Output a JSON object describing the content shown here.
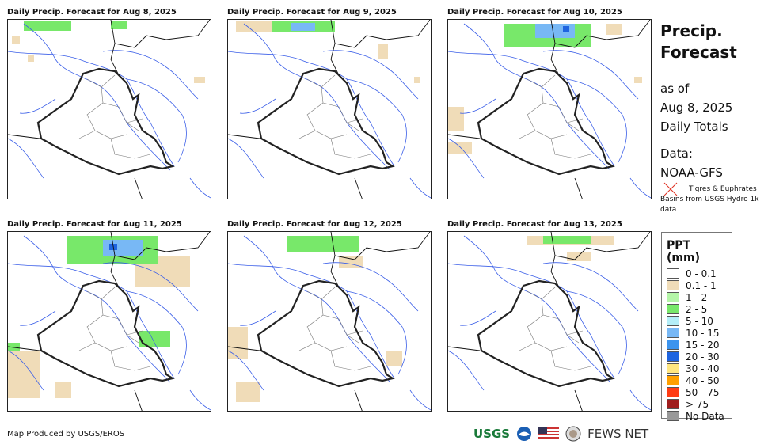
{
  "panels": [
    {
      "title": "Daily Precip. Forecast for Aug 8, 2025"
    },
    {
      "title": "Daily Precip. Forecast for Aug 9, 2025"
    },
    {
      "title": "Daily Precip. Forecast for Aug 10, 2025"
    },
    {
      "title": "Daily Precip. Forecast for Aug 11, 2025"
    },
    {
      "title": "Daily Precip. Forecast for Aug 12, 2025"
    },
    {
      "title": "Daily Precip. Forecast for Aug 13, 2025"
    }
  ],
  "side": {
    "title1": "Precip.",
    "title2": "Forecast",
    "asof": "as of",
    "date": "Aug 8, 2025",
    "totals": "Daily Totals",
    "data_label": "Data:",
    "data_source": "NOAA-GFS",
    "basin_note": "Tigres & Euphrates Basins from USGS Hydro 1k data"
  },
  "legend": {
    "title": "PPT (mm)",
    "items": [
      {
        "label": "0 - 0.1",
        "color": "#ffffff"
      },
      {
        "label": "0.1 - 1",
        "color": "#f0dcb8"
      },
      {
        "label": "1 - 2",
        "color": "#b4f5a8"
      },
      {
        "label": "2 - 5",
        "color": "#78e86a"
      },
      {
        "label": "5 - 10",
        "color": "#b4eef8"
      },
      {
        "label": "10 - 15",
        "color": "#78b8f5"
      },
      {
        "label": "15 - 20",
        "color": "#3c94ee"
      },
      {
        "label": "20 - 30",
        "color": "#1e64e0"
      },
      {
        "label": "30 - 40",
        "color": "#ffe680"
      },
      {
        "label": "40 - 50",
        "color": "#ffa000"
      },
      {
        "label": "50 - 75",
        "color": "#ff3c14"
      },
      {
        "label": "> 75",
        "color": "#a01e1e"
      },
      {
        "label": "No Data",
        "color": "#999999"
      }
    ]
  },
  "footer": {
    "credit": "Map Produced by USGS/EROS",
    "fews": "FEWS NET",
    "usgs": "USGS"
  }
}
